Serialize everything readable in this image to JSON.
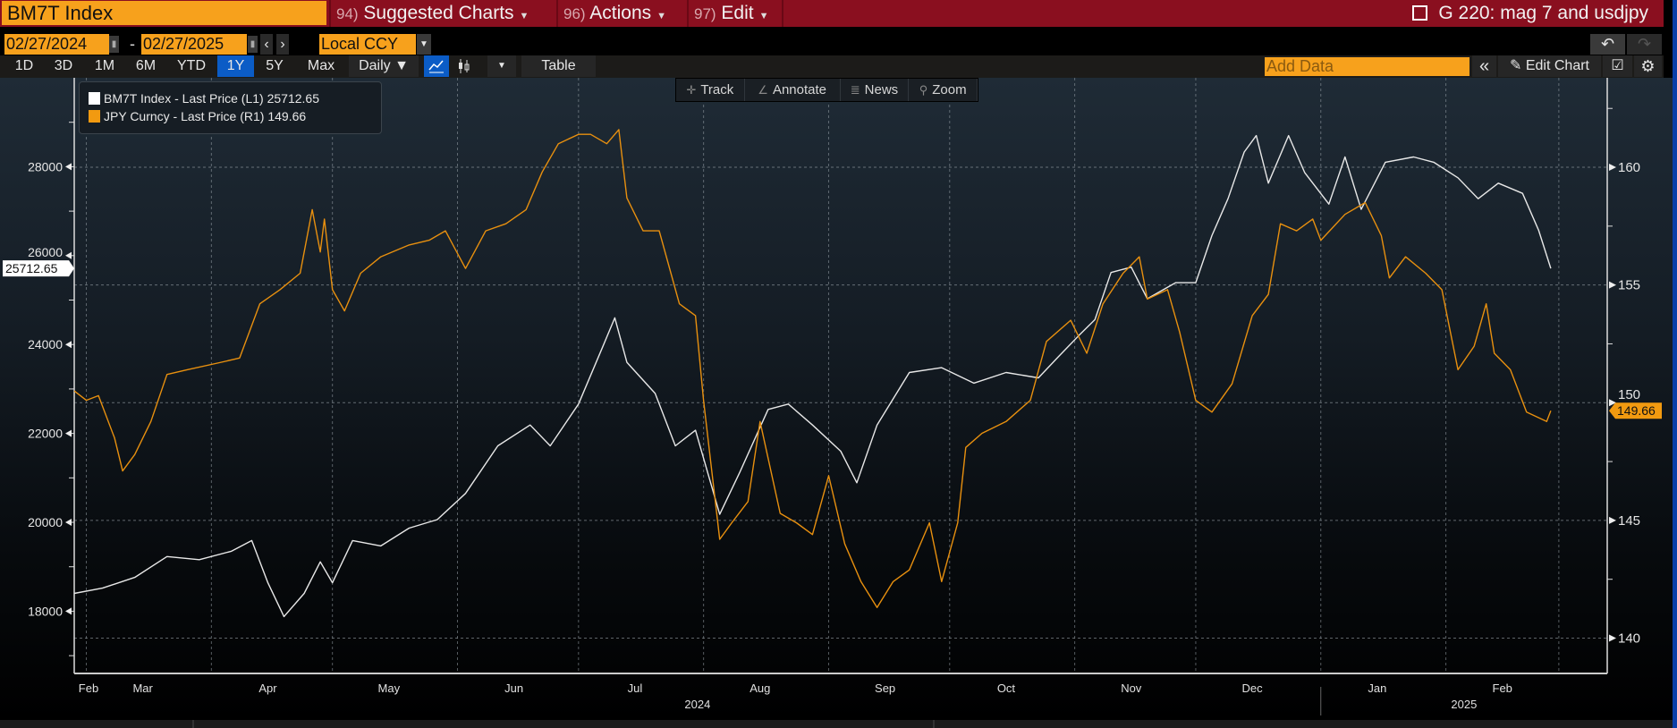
{
  "header": {
    "ticker": "BM7T Index",
    "menus": [
      {
        "num": "94)",
        "label": "Suggested Charts"
      },
      {
        "num": "96)",
        "label": "Actions"
      },
      {
        "num": "97)",
        "label": "Edit"
      }
    ],
    "page_title": "G 220: mag 7 and usdjpy"
  },
  "controls": {
    "start_date": "02/27/2024",
    "end_date": "02/27/2025",
    "dash": "-",
    "prev": "‹",
    "next": "›",
    "currency": "Local CCY",
    "undo": "↶",
    "redo": "↷"
  },
  "toolbar": {
    "ranges": [
      "1D",
      "3D",
      "1M",
      "6M",
      "YTD",
      "1Y",
      "5Y",
      "Max"
    ],
    "selected_range": "1Y",
    "frequency": "Daily ▼",
    "table": "Table",
    "add_data_placeholder": "Add Data",
    "collapse": "«",
    "edit_chart": "Edit Chart"
  },
  "chart_tools": [
    "Track",
    "Annotate",
    "News",
    "Zoom"
  ],
  "legend": [
    {
      "label": "BM7T Index - Last Price (L1) 25712.65",
      "color": "#ffffff"
    },
    {
      "label": "JPY Curncy - Last Price (R1) 149.66",
      "color": "#f29a10"
    }
  ],
  "chart_data": {
    "type": "line",
    "title": "",
    "x_range": [
      "2024-02-27",
      "2025-03-13"
    ],
    "grid": true,
    "legend_position": "top-left",
    "month_labels": [
      "Feb",
      "Mar",
      "Apr",
      "May",
      "Jun",
      "Jul",
      "Aug",
      "Sep",
      "Oct",
      "Nov",
      "Dec",
      "Jan",
      "Feb"
    ],
    "year_labels": [
      "2024",
      "2025"
    ],
    "left_axis": {
      "ticks": [
        "18000",
        "20000",
        "22000",
        "24000",
        "26000",
        "28000"
      ],
      "ylim": [
        16600,
        30000
      ],
      "last_value_label": "25712.65"
    },
    "right_axis": {
      "ticks": [
        "140",
        "145",
        "150",
        "155",
        "160"
      ],
      "ylim": [
        138.5,
        163.8
      ],
      "last_value_label": "149.66"
    },
    "series": [
      {
        "name": "BM7T Index - Last Price (L1)",
        "axis": "left",
        "color": "#e8e8e8",
        "dates": [
          "2024-02-27",
          "2024-03-05",
          "2024-03-13",
          "2024-03-21",
          "2024-03-29",
          "2024-04-06",
          "2024-04-11",
          "2024-04-15",
          "2024-04-19",
          "2024-04-24",
          "2024-04-28",
          "2024-05-01",
          "2024-05-06",
          "2024-05-13",
          "2024-05-20",
          "2024-05-27",
          "2024-06-03",
          "2024-06-11",
          "2024-06-19",
          "2024-06-24",
          "2024-07-01",
          "2024-07-07",
          "2024-07-10",
          "2024-07-13",
          "2024-07-20",
          "2024-07-25",
          "2024-07-30",
          "2024-08-05",
          "2024-08-10",
          "2024-08-17",
          "2024-08-22",
          "2024-08-28",
          "2024-09-04",
          "2024-09-08",
          "2024-09-13",
          "2024-09-21",
          "2024-09-29",
          "2024-10-07",
          "2024-10-15",
          "2024-10-23",
          "2024-10-28",
          "2024-11-02",
          "2024-11-06",
          "2024-11-10",
          "2024-11-15",
          "2024-11-19",
          "2024-11-26",
          "2024-12-01",
          "2024-12-05",
          "2024-12-09",
          "2024-12-13",
          "2024-12-16",
          "2024-12-19",
          "2024-12-24",
          "2024-12-28",
          "2025-01-03",
          "2025-01-07",
          "2025-01-11",
          "2025-01-17",
          "2025-01-24",
          "2025-01-29",
          "2025-02-04",
          "2025-02-09",
          "2025-02-14",
          "2025-02-20",
          "2025-02-24",
          "2025-02-27"
        ],
        "values": [
          18400,
          18520,
          18760,
          19230,
          19160,
          19350,
          19590,
          18640,
          17880,
          18400,
          19110,
          18640,
          19590,
          19470,
          19870,
          20060,
          20650,
          21720,
          22190,
          21720,
          22660,
          23950,
          24600,
          23600,
          22900,
          21720,
          22070,
          20180,
          21130,
          22540,
          22660,
          22190,
          21600,
          20890,
          22190,
          23370,
          23480,
          23130,
          23370,
          23250,
          23730,
          24200,
          24560,
          25620,
          25740,
          25030,
          25390,
          25390,
          26450,
          27280,
          28330,
          28700,
          27630,
          28700,
          27870,
          27160,
          28220,
          27040,
          28100,
          28220,
          28100,
          27750,
          27280,
          27630,
          27400,
          26570,
          25712.65
        ]
      },
      {
        "name": "JPY Curncy - Last Price (R1)",
        "axis": "right",
        "color": "#e8900f",
        "dates": [
          "2024-02-27",
          "2024-03-01",
          "2024-03-04",
          "2024-03-08",
          "2024-03-10",
          "2024-03-13",
          "2024-03-17",
          "2024-03-21",
          "2024-03-26",
          "2024-04-03",
          "2024-04-08",
          "2024-04-13",
          "2024-04-18",
          "2024-04-23",
          "2024-04-26",
          "2024-04-28",
          "2024-04-29",
          "2024-05-01",
          "2024-05-04",
          "2024-05-08",
          "2024-05-13",
          "2024-05-20",
          "2024-05-25",
          "2024-05-29",
          "2024-06-03",
          "2024-06-08",
          "2024-06-13",
          "2024-06-18",
          "2024-06-22",
          "2024-06-26",
          "2024-07-01",
          "2024-07-04",
          "2024-07-08",
          "2024-07-11",
          "2024-07-13",
          "2024-07-17",
          "2024-07-21",
          "2024-07-26",
          "2024-07-30",
          "2024-08-01",
          "2024-08-05",
          "2024-08-08",
          "2024-08-12",
          "2024-08-15",
          "2024-08-20",
          "2024-08-24",
          "2024-08-28",
          "2024-09-01",
          "2024-09-05",
          "2024-09-09",
          "2024-09-13",
          "2024-09-17",
          "2024-09-21",
          "2024-09-26",
          "2024-09-29",
          "2024-10-03",
          "2024-10-05",
          "2024-10-09",
          "2024-10-15",
          "2024-10-21",
          "2024-10-25",
          "2024-10-31",
          "2024-11-04",
          "2024-11-08",
          "2024-11-13",
          "2024-11-17",
          "2024-11-19",
          "2024-11-24",
          "2024-11-27",
          "2024-12-01",
          "2024-12-05",
          "2024-12-10",
          "2024-12-15",
          "2024-12-19",
          "2024-12-22",
          "2024-12-26",
          "2024-12-30",
          "2025-01-01",
          "2025-01-07",
          "2025-01-12",
          "2025-01-16",
          "2025-01-18",
          "2025-01-22",
          "2025-01-27",
          "2025-01-31",
          "2025-02-04",
          "2025-02-08",
          "2025-02-11",
          "2025-02-13",
          "2025-02-17",
          "2025-02-21",
          "2025-02-26",
          "2025-02-27"
        ],
        "values": [
          150.5,
          150.1,
          150.3,
          148.5,
          147.1,
          147.8,
          149.2,
          151.2,
          151.4,
          151.7,
          151.9,
          154.2,
          154.8,
          155.5,
          158.2,
          156.4,
          157.8,
          154.8,
          153.9,
          155.5,
          156.2,
          156.7,
          156.9,
          157.3,
          155.7,
          157.3,
          157.6,
          158.2,
          159.8,
          161.0,
          161.4,
          161.4,
          161.0,
          161.6,
          158.7,
          157.3,
          157.3,
          154.2,
          153.7,
          150.1,
          144.2,
          144.9,
          145.8,
          149.2,
          145.3,
          144.9,
          144.4,
          146.9,
          144.0,
          142.4,
          141.3,
          142.4,
          142.9,
          144.9,
          142.4,
          144.9,
          148.1,
          148.7,
          149.2,
          150.1,
          152.6,
          153.5,
          152.1,
          154.2,
          155.5,
          156.2,
          154.4,
          154.8,
          153.0,
          150.1,
          149.6,
          150.8,
          153.7,
          154.6,
          157.6,
          157.3,
          157.8,
          156.9,
          158.0,
          158.5,
          157.1,
          155.3,
          156.2,
          155.5,
          154.8,
          151.4,
          152.4,
          154.2,
          152.1,
          151.4,
          149.6,
          149.2,
          149.66
        ]
      }
    ]
  }
}
